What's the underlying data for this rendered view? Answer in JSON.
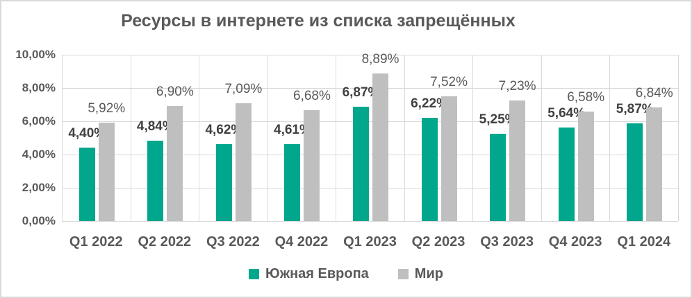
{
  "page": {
    "background": "#FFFFFF",
    "frame_border_color": "#D9D9D9"
  },
  "chart_data": {
    "type": "bar",
    "title": "Ресурсы в интернете из списка запрещённых",
    "categories": [
      "Q1 2022",
      "Q2 2022",
      "Q3 2022",
      "Q4 2022",
      "Q1 2023",
      "Q2 2023",
      "Q3 2023",
      "Q4 2023",
      "Q1 2024"
    ],
    "series": [
      {
        "name": "Южная Европа",
        "color": "#00A78C",
        "values": [
          4.4,
          4.84,
          4.62,
          4.61,
          6.87,
          6.22,
          5.25,
          5.64,
          5.87
        ],
        "labels": [
          "4,40%",
          "4,84%",
          "4,62%",
          "4,61%",
          "6,87%",
          "6,22%",
          "5,25%",
          "5,64%",
          "5,87%"
        ],
        "label_weight": "bold"
      },
      {
        "name": "Мир",
        "color": "#BFBFBF",
        "values": [
          5.92,
          6.9,
          7.09,
          6.68,
          8.89,
          7.52,
          7.23,
          6.58,
          6.84
        ],
        "labels": [
          "5,92%",
          "6,90%",
          "7,09%",
          "6,68%",
          "8,89%",
          "7,52%",
          "7,23%",
          "6,58%",
          "6,84%"
        ],
        "label_weight": "normal"
      }
    ],
    "xlabel": "",
    "ylabel": "",
    "ylim": [
      0,
      10
    ],
    "yticks": [
      {
        "value": 0,
        "label": "0,00%"
      },
      {
        "value": 2,
        "label": "2,00%"
      },
      {
        "value": 4,
        "label": "4,00%"
      },
      {
        "value": 6,
        "label": "6,00%"
      },
      {
        "value": 8,
        "label": "8,00%"
      },
      {
        "value": 10,
        "label": "10,00%"
      }
    ],
    "grid": true,
    "gridline_color": "#D9D9D9",
    "axis_text_color": "#595959",
    "legend_position": "bottom"
  }
}
